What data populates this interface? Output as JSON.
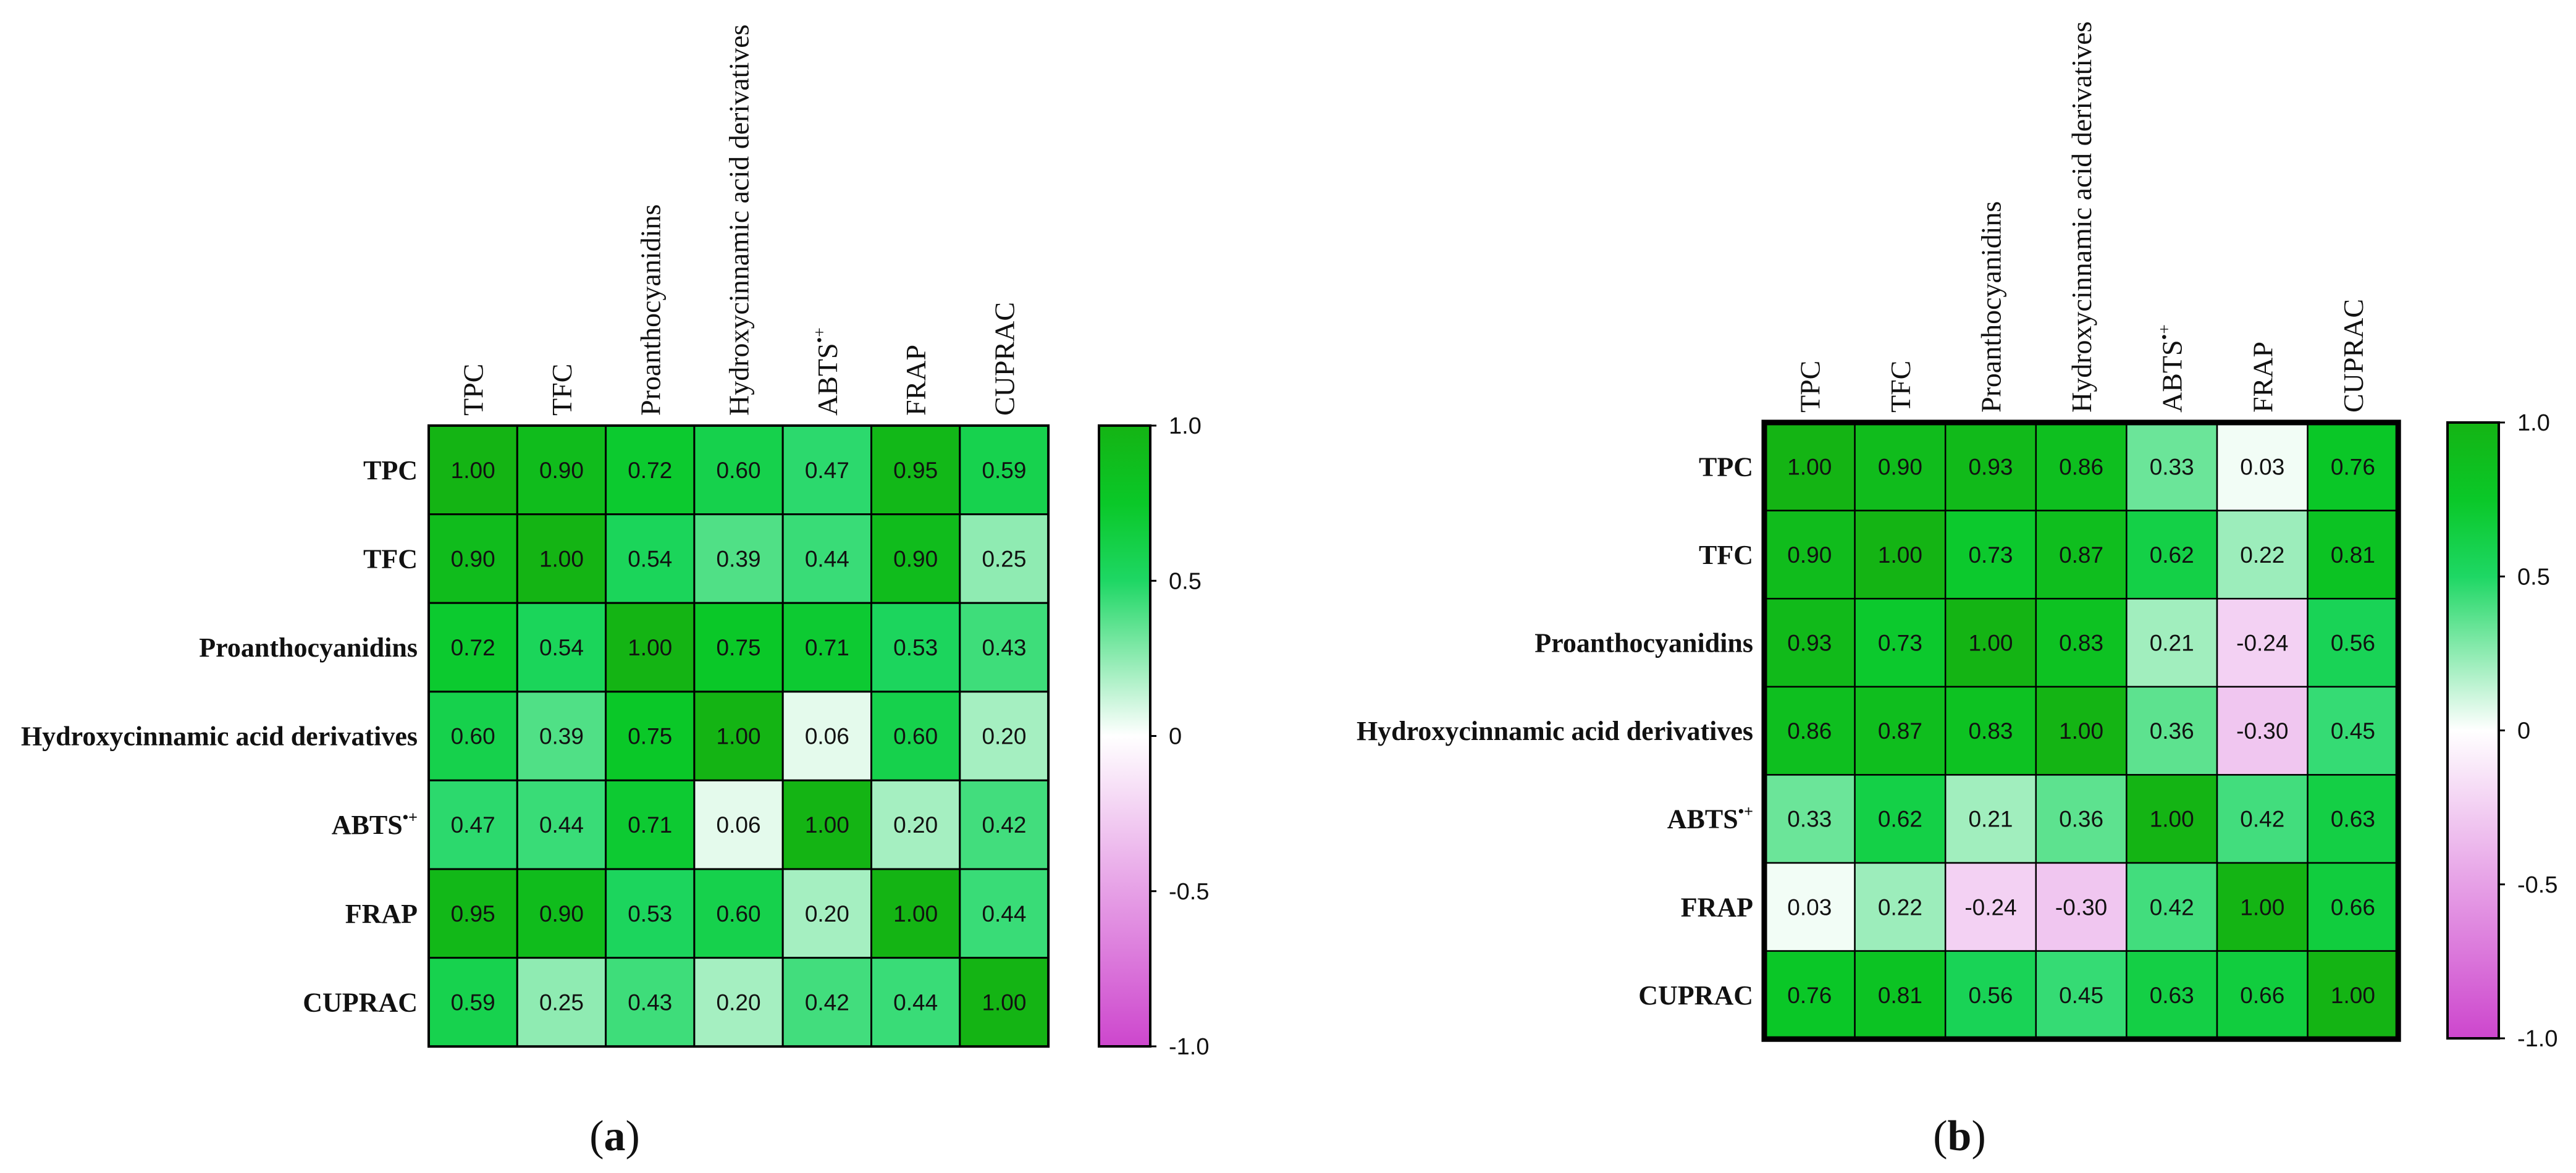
{
  "colorscale": [
    {
      "value": 1.0,
      "color": "#14b414"
    },
    {
      "value": 0.75,
      "color": "#0ac828"
    },
    {
      "value": 0.5,
      "color": "#1ed764"
    },
    {
      "value": 0.0,
      "color": "#ffffff"
    },
    {
      "value": -0.5,
      "color": "#e6a0e6"
    },
    {
      "value": -1.0,
      "color": "#cd46cd"
    }
  ],
  "chart_data": [
    {
      "type": "heatmap",
      "panel_label": "(a)",
      "row_labels": [
        "TPC",
        "TFC",
        "Proanthocyanidins",
        "Hydroxycinnamic acid derivatives",
        "ABTS•+",
        "FRAP",
        "CUPRAC"
      ],
      "col_labels": [
        "TPC",
        "TFC",
        "Proanthocyanidins",
        "Hydroxycinnamic acid derivatives",
        "ABTS•+",
        "FRAP",
        "CUPRAC"
      ],
      "values": [
        [
          1.0,
          0.9,
          0.72,
          0.6,
          0.47,
          0.95,
          0.59
        ],
        [
          0.9,
          1.0,
          0.54,
          0.39,
          0.44,
          0.9,
          0.25
        ],
        [
          0.72,
          0.54,
          1.0,
          0.75,
          0.71,
          0.53,
          0.43
        ],
        [
          0.6,
          0.39,
          0.75,
          1.0,
          0.06,
          0.6,
          0.2
        ],
        [
          0.47,
          0.44,
          0.71,
          0.06,
          1.0,
          0.2,
          0.42
        ],
        [
          0.95,
          0.9,
          0.53,
          0.6,
          0.2,
          1.0,
          0.44
        ],
        [
          0.59,
          0.25,
          0.43,
          0.2,
          0.42,
          0.44,
          1.0
        ]
      ],
      "colorbar": {
        "range": [
          -1.0,
          1.0
        ],
        "ticks": [
          1.0,
          0.5,
          0.0,
          -0.5,
          -1.0
        ],
        "tick_labels": [
          "1.0",
          "0.5",
          "0",
          "-0.5",
          "-1.0"
        ]
      }
    },
    {
      "type": "heatmap",
      "panel_label": "(b)",
      "row_labels": [
        "TPC",
        "TFC",
        "Proanthocyanidins",
        "Hydroxycinnamic acid derivatives",
        "ABTS•+",
        "FRAP",
        "CUPRAC"
      ],
      "col_labels": [
        "TPC",
        "TFC",
        "Proanthocyanidins",
        "Hydroxycinnamic acid derivatives",
        "ABTS•+",
        "FRAP",
        "CUPRAC"
      ],
      "values": [
        [
          1.0,
          0.9,
          0.93,
          0.86,
          0.33,
          0.03,
          0.76
        ],
        [
          0.9,
          1.0,
          0.73,
          0.87,
          0.62,
          0.22,
          0.81
        ],
        [
          0.93,
          0.73,
          1.0,
          0.83,
          0.21,
          -0.24,
          0.56
        ],
        [
          0.86,
          0.87,
          0.83,
          1.0,
          0.36,
          -0.3,
          0.45
        ],
        [
          0.33,
          0.62,
          0.21,
          0.36,
          1.0,
          0.42,
          0.63
        ],
        [
          0.03,
          0.22,
          -0.24,
          -0.3,
          0.42,
          1.0,
          0.66
        ],
        [
          0.76,
          0.81,
          0.56,
          0.45,
          0.63,
          0.66,
          1.0
        ]
      ],
      "colorbar": {
        "range": [
          -1.0,
          1.0
        ],
        "ticks": [
          1.0,
          0.5,
          0.0,
          -0.5,
          -1.0
        ],
        "tick_labels": [
          "1.0",
          "0.5",
          "0",
          "-0.5",
          "-1.0"
        ]
      }
    }
  ]
}
